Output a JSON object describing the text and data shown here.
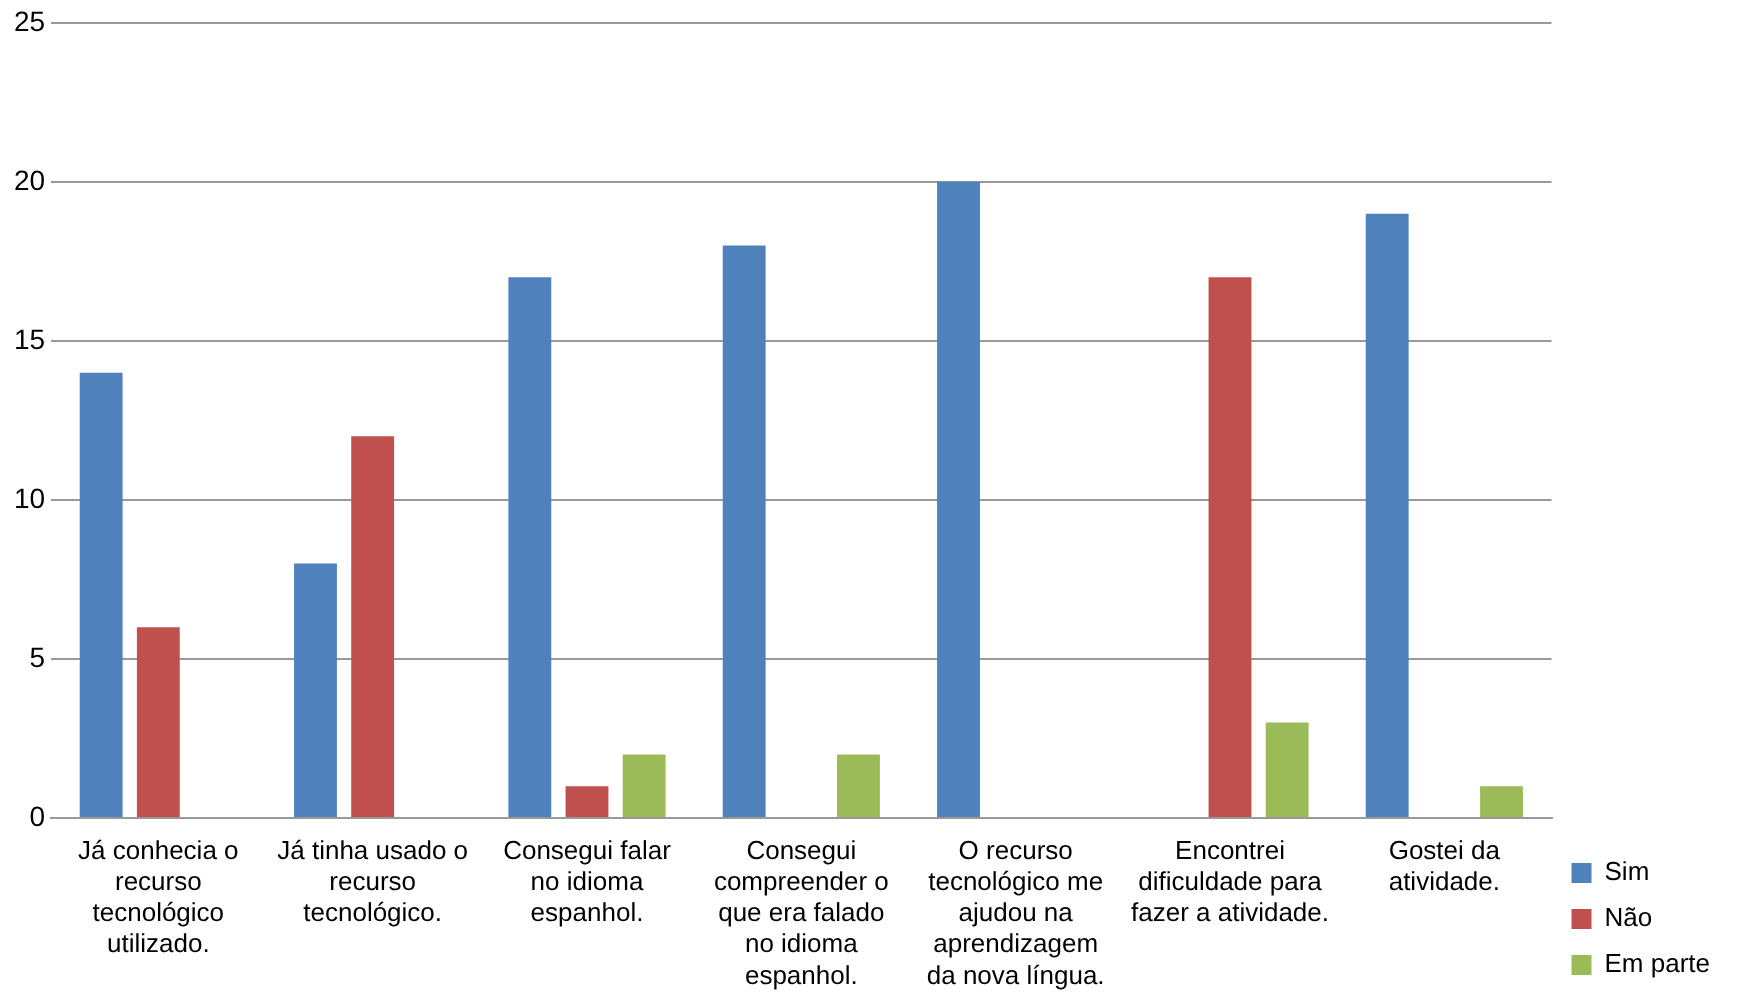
{
  "chart_data": {
    "type": "bar",
    "categories": [
      "Já conhecia o recurso tecnológico utilizado.",
      "Já tinha usado o recurso tecnológico.",
      "Consegui falar no idioma espanhol.",
      "Consegui compreender o que era falado no idioma espanhol.",
      "O recurso tecnológico me ajudou na aprendizagem da nova língua.",
      "Encontrei dificuldade para fazer a atividade.",
      "Gostei da atividade."
    ],
    "series": [
      {
        "name": "Sim",
        "color": "#4f81bd",
        "values": [
          14,
          8,
          17,
          18,
          20,
          0,
          19
        ]
      },
      {
        "name": "Não",
        "color": "#c0504d",
        "values": [
          6,
          12,
          1,
          0,
          0,
          17,
          0
        ]
      },
      {
        "name": "Em parte",
        "color": "#9bbb59",
        "values": [
          0,
          0,
          2,
          2,
          0,
          3,
          1
        ]
      }
    ],
    "ylim": [
      0,
      25
    ],
    "yticks": [
      0,
      5,
      10,
      15,
      20,
      25
    ],
    "grid": "y",
    "legend": "bottom right"
  }
}
